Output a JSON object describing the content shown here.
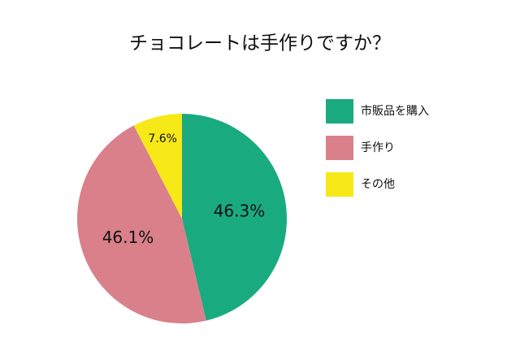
{
  "chart_data": {
    "type": "pie",
    "title": "チョコレートは手作りですか？",
    "categories": [
      "市販品を購入",
      "手作り",
      "その他"
    ],
    "values": [
      46.3,
      46.1,
      7.6
    ],
    "value_labels": [
      "46.3%",
      "46.1%",
      "7.6%"
    ],
    "colors": [
      "#1aaa80",
      "#d9808a",
      "#f7e818"
    ],
    "legend": "right"
  }
}
